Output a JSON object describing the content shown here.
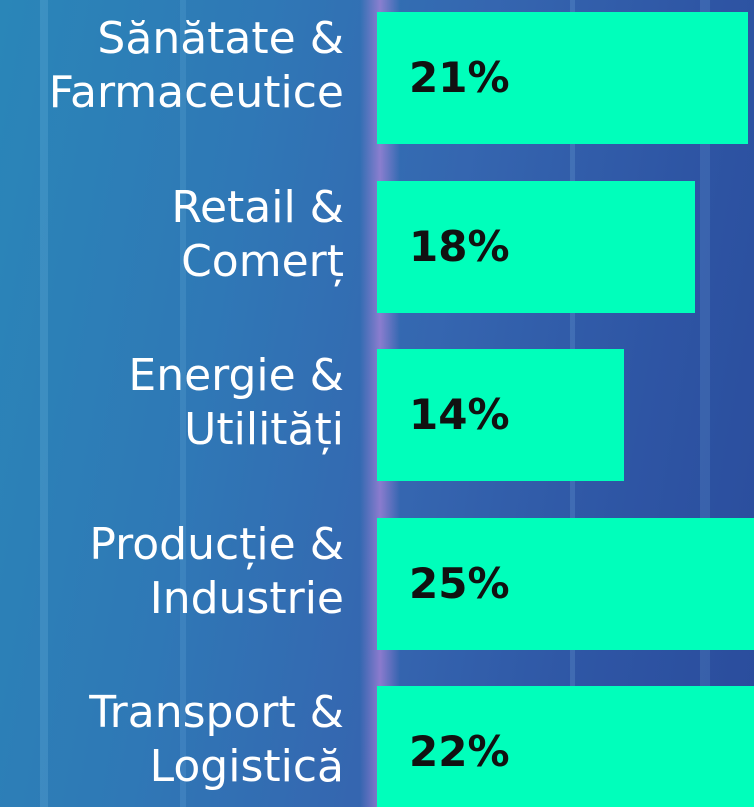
{
  "chart_data": {
    "type": "bar",
    "orientation": "horizontal",
    "categories": [
      "Sănătate &\nFarmaceutice",
      "Retail &\nComerț",
      "Energie &\nUtilități",
      "Producție &\nIndustrie",
      "Transport &\nLogistică"
    ],
    "values": [
      21,
      18,
      14,
      25,
      22
    ],
    "value_labels": [
      "21%",
      "18%",
      "14%",
      "25%",
      "22%"
    ],
    "color": "#00ffbb"
  }
}
